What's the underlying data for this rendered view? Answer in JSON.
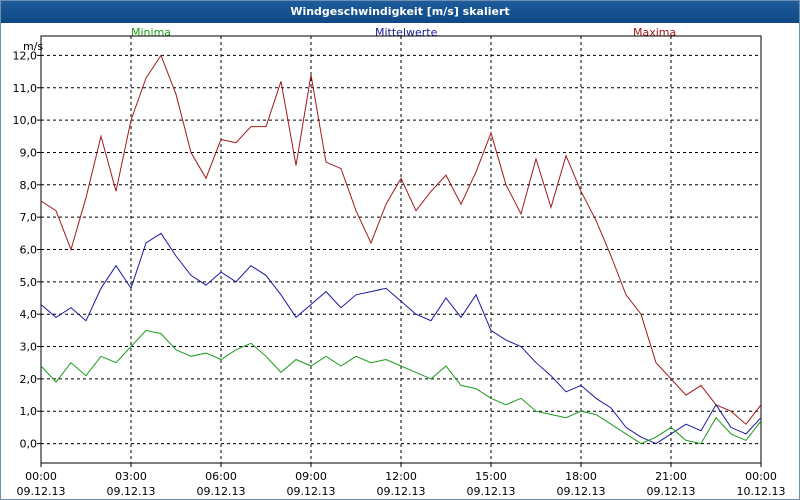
{
  "window": {
    "title": "Windgeschwindigkeit [m/s] skaliert"
  },
  "legend": [
    {
      "label": "Minima",
      "color": "#1a9a1a"
    },
    {
      "label": "Mittelwerte",
      "color": "#1a1aa0"
    },
    {
      "label": "Maxima",
      "color": "#a01a1a"
    }
  ],
  "chart_data": {
    "type": "line",
    "title": "Windgeschwindigkeit [m/s] skaliert",
    "ylabel": "m/s",
    "xlabel": "",
    "ylim": [
      -0.6,
      12.6
    ],
    "xlim": [
      0,
      24
    ],
    "grid": true,
    "yticks": [
      0,
      1,
      2,
      3,
      4,
      5,
      6,
      7,
      8,
      9,
      10,
      11,
      12
    ],
    "ytick_labels": [
      "0,0",
      "1,0",
      "2,0",
      "3,0",
      "4,0",
      "5,0",
      "6,0",
      "7,0",
      "8,0",
      "9,0",
      "10,0",
      "11,0",
      "12,0"
    ],
    "xticks": [
      {
        "time": "00:00",
        "date": "09.12.13"
      },
      {
        "time": "03:00",
        "date": "09.12.13"
      },
      {
        "time": "06:00",
        "date": "09.12.13"
      },
      {
        "time": "09:00",
        "date": "09.12.13"
      },
      {
        "time": "12:00",
        "date": "09.12.13"
      },
      {
        "time": "15:00",
        "date": "09.12.13"
      },
      {
        "time": "18:00",
        "date": "09.12.13"
      },
      {
        "time": "21:00",
        "date": "09.12.13"
      },
      {
        "time": "00:00",
        "date": "10.12.13"
      }
    ],
    "x_hours": [
      0,
      0.5,
      1,
      1.5,
      2,
      2.5,
      3,
      3.5,
      4,
      4.5,
      5,
      5.5,
      6,
      6.5,
      7,
      7.5,
      8,
      8.5,
      9,
      9.5,
      10,
      10.5,
      11,
      11.5,
      12,
      12.5,
      13,
      13.5,
      14,
      14.5,
      15,
      15.5,
      16,
      16.5,
      17,
      17.5,
      18,
      18.5,
      19,
      19.5,
      20,
      20.5,
      21,
      21.5,
      22,
      22.5,
      23,
      23.5,
      24
    ],
    "series": [
      {
        "name": "Maxima",
        "color": "#a01a1a",
        "values": [
          7.5,
          7.2,
          6.0,
          7.6,
          9.5,
          7.8,
          10.0,
          11.3,
          12.0,
          10.8,
          9.0,
          8.2,
          9.4,
          9.3,
          9.8,
          9.8,
          11.2,
          8.6,
          11.4,
          8.7,
          8.5,
          7.2,
          6.2,
          7.4,
          8.2,
          7.2,
          7.8,
          8.3,
          7.4,
          8.4,
          9.6,
          8.0,
          7.1,
          8.8,
          7.3,
          8.9,
          7.8,
          6.9,
          5.8,
          4.6,
          4.0,
          2.5,
          2.0,
          1.5,
          1.8,
          1.2,
          1.0,
          0.6,
          1.2
        ]
      },
      {
        "name": "Mittelwerte",
        "color": "#1a1aa0",
        "values": [
          4.3,
          3.9,
          4.2,
          3.8,
          4.8,
          5.5,
          4.8,
          6.2,
          6.5,
          5.8,
          5.2,
          4.9,
          5.3,
          5.0,
          5.5,
          5.2,
          4.6,
          3.9,
          4.3,
          4.7,
          4.2,
          4.6,
          4.7,
          4.8,
          4.4,
          4.0,
          3.8,
          4.5,
          3.9,
          4.6,
          3.5,
          3.2,
          3.0,
          2.5,
          2.1,
          1.6,
          1.8,
          1.4,
          1.1,
          0.5,
          0.2,
          0.0,
          0.3,
          0.6,
          0.4,
          1.2,
          0.5,
          0.3,
          0.8
        ]
      },
      {
        "name": "Minima",
        "color": "#1a9a1a",
        "values": [
          2.4,
          1.9,
          2.5,
          2.1,
          2.7,
          2.5,
          3.0,
          3.5,
          3.4,
          2.9,
          2.7,
          2.8,
          2.6,
          2.9,
          3.1,
          2.7,
          2.2,
          2.6,
          2.4,
          2.7,
          2.4,
          2.7,
          2.5,
          2.6,
          2.4,
          2.2,
          2.0,
          2.4,
          1.8,
          1.7,
          1.4,
          1.2,
          1.4,
          1.0,
          0.9,
          0.8,
          1.0,
          0.9,
          0.6,
          0.3,
          0.0,
          0.2,
          0.5,
          0.1,
          0.0,
          0.8,
          0.3,
          0.1,
          0.7
        ]
      }
    ]
  }
}
